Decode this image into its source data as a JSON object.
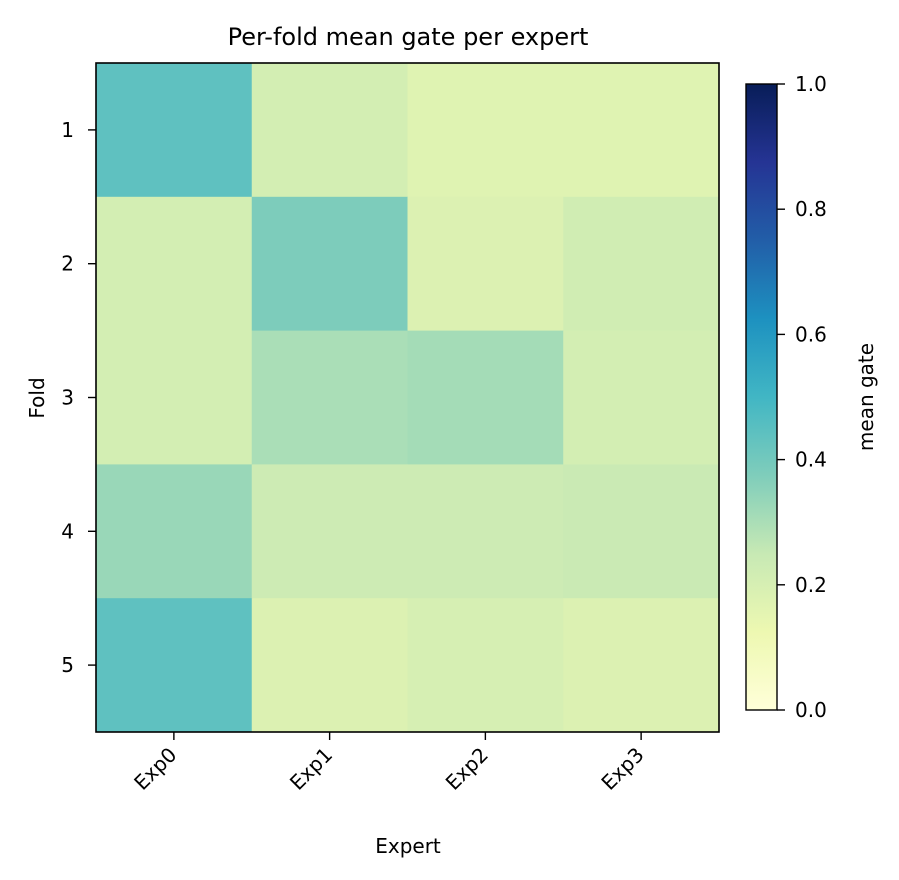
{
  "chart_data": {
    "type": "heatmap",
    "title": "Per-fold mean gate per expert",
    "xlabel": "Expert",
    "ylabel": "Fold",
    "x_categories": [
      "Exp0",
      "Exp1",
      "Exp2",
      "Exp3"
    ],
    "y_categories": [
      "1",
      "2",
      "3",
      "4",
      "5"
    ],
    "values": [
      [
        0.44,
        0.21,
        0.17,
        0.17
      ],
      [
        0.21,
        0.38,
        0.18,
        0.22
      ],
      [
        0.21,
        0.3,
        0.31,
        0.21
      ],
      [
        0.33,
        0.23,
        0.23,
        0.24
      ],
      [
        0.44,
        0.18,
        0.2,
        0.18
      ]
    ],
    "colorbar": {
      "label": "mean gate",
      "range": [
        0.0,
        1.0
      ],
      "ticks": [
        "0.0",
        "0.2",
        "0.4",
        "0.6",
        "0.8",
        "1.0"
      ],
      "colormap": "YlGnBu",
      "colormap_stops": [
        "#ffffd9",
        "#edf8b1",
        "#c7e9b4",
        "#7fcdbb",
        "#41b6c4",
        "#1d91c0",
        "#225ea8",
        "#253494",
        "#081d58"
      ]
    },
    "grid": false
  }
}
